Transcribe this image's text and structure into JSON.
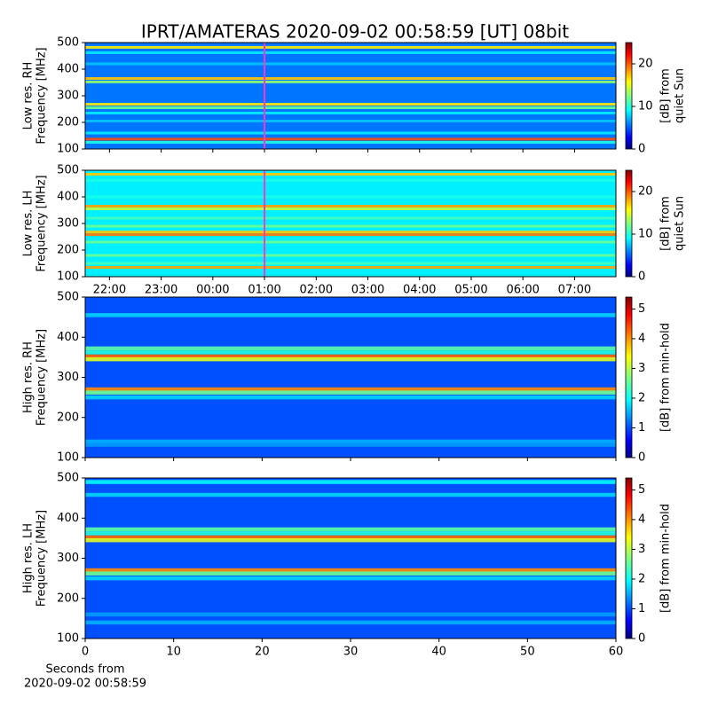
{
  "title": "IPRT/AMATERAS 2020-09-02 00:58:59 [UT]   08bit",
  "chart_data": [
    {
      "type": "spectrogram",
      "ylabel": [
        "Low res. RH",
        "Frequency [MHz]"
      ],
      "colormap": "jet",
      "ylim": [
        100,
        500
      ],
      "yticks": [
        100,
        200,
        300,
        400,
        500
      ],
      "clim": [
        0,
        25
      ],
      "cticks": [
        0,
        10,
        20
      ],
      "clabel": [
        "[dB] from",
        "quiet Sun"
      ],
      "background": 6,
      "marker_x": 25,
      "marker_color": "#ff33cc",
      "bands": [
        {
          "freq": 482,
          "db": 16
        },
        {
          "freq": 462,
          "db": 9
        },
        {
          "freq": 420,
          "db": 8
        },
        {
          "freq": 365,
          "db": 17
        },
        {
          "freq": 352,
          "db": 13
        },
        {
          "freq": 268,
          "db": 16
        },
        {
          "freq": 255,
          "db": 12
        },
        {
          "freq": 235,
          "db": 9
        },
        {
          "freq": 205,
          "db": 8
        },
        {
          "freq": 160,
          "db": 9
        },
        {
          "freq": 137,
          "db": 20
        },
        {
          "freq": 125,
          "db": 10
        }
      ]
    },
    {
      "type": "spectrogram",
      "ylabel": [
        "Low res. LH",
        "Frequency [MHz]"
      ],
      "colormap": "jet",
      "ylim": [
        100,
        500
      ],
      "yticks": [
        100,
        200,
        300,
        400,
        500
      ],
      "xlim": [
        21.53,
        31.8
      ],
      "xticks": [
        {
          "value": 22,
          "label": "22:00"
        },
        {
          "value": 23,
          "label": "23:00"
        },
        {
          "value": 24,
          "label": "00:00"
        },
        {
          "value": 25,
          "label": "01:00"
        },
        {
          "value": 26,
          "label": "02:00"
        },
        {
          "value": 27,
          "label": "03:00"
        },
        {
          "value": 28,
          "label": "04:00"
        },
        {
          "value": 29,
          "label": "05:00"
        },
        {
          "value": 30,
          "label": "06:00"
        },
        {
          "value": 31,
          "label": "07:00"
        }
      ],
      "clim": [
        0,
        25
      ],
      "cticks": [
        0,
        10,
        20
      ],
      "clabel": [
        "[dB] from",
        "quiet Sun"
      ],
      "background": 9,
      "marker_x": 25,
      "marker_color": "#ff33cc",
      "bands": [
        {
          "freq": 485,
          "db": 17
        },
        {
          "freq": 462,
          "db": 10
        },
        {
          "freq": 400,
          "db": 10
        },
        {
          "freq": 365,
          "db": 18
        },
        {
          "freq": 355,
          "db": 14
        },
        {
          "freq": 320,
          "db": 11
        },
        {
          "freq": 290,
          "db": 12
        },
        {
          "freq": 268,
          "db": 17
        },
        {
          "freq": 258,
          "db": 19
        },
        {
          "freq": 230,
          "db": 12
        },
        {
          "freq": 180,
          "db": 12
        },
        {
          "freq": 150,
          "db": 11
        },
        {
          "freq": 135,
          "db": 18
        },
        {
          "freq": 125,
          "db": 9
        }
      ]
    },
    {
      "type": "spectrogram",
      "ylabel": [
        "High res. RH",
        "Frequency [MHz]"
      ],
      "colormap": "jet",
      "ylim": [
        100,
        500
      ],
      "yticks": [
        100,
        200,
        300,
        400,
        500
      ],
      "clim": [
        0,
        5.4
      ],
      "cticks": [
        0,
        1,
        2,
        3,
        4,
        5
      ],
      "clabel": [
        "[dB] from min-hold"
      ],
      "background": 1.1,
      "bands": [
        {
          "freq": 455,
          "db": 1.8
        },
        {
          "freq": 372,
          "db": 2.5
        },
        {
          "freq": 362,
          "db": 2.2
        },
        {
          "freq": 352,
          "db": 4.2
        },
        {
          "freq": 345,
          "db": 3.2
        },
        {
          "freq": 270,
          "db": 4.0
        },
        {
          "freq": 262,
          "db": 2.6
        },
        {
          "freq": 250,
          "db": 1.8
        },
        {
          "freq": 140,
          "db": 1.6
        },
        {
          "freq": 132,
          "db": 1.5
        }
      ]
    },
    {
      "type": "spectrogram",
      "ylabel": [
        "High res. LH",
        "Frequency [MHz]"
      ],
      "colormap": "jet",
      "ylim": [
        100,
        500
      ],
      "yticks": [
        100,
        200,
        300,
        400,
        500
      ],
      "xlim": [
        0,
        60
      ],
      "xticks": [
        0,
        10,
        20,
        30,
        40,
        50,
        60
      ],
      "xlabel": [
        "Seconds from",
        "2020-09-02 00:58:59"
      ],
      "clim": [
        0,
        5.4
      ],
      "cticks": [
        0,
        1,
        2,
        3,
        4,
        5
      ],
      "clabel": [
        "[dB] from min-hold"
      ],
      "background": 1.1,
      "bands": [
        {
          "freq": 490,
          "db": 2.0
        },
        {
          "freq": 458,
          "db": 1.8
        },
        {
          "freq": 372,
          "db": 2.5
        },
        {
          "freq": 362,
          "db": 2.2
        },
        {
          "freq": 352,
          "db": 4.2
        },
        {
          "freq": 345,
          "db": 3.2
        },
        {
          "freq": 270,
          "db": 4.0
        },
        {
          "freq": 262,
          "db": 2.6
        },
        {
          "freq": 250,
          "db": 1.8
        },
        {
          "freq": 160,
          "db": 1.5
        },
        {
          "freq": 140,
          "db": 1.6
        }
      ]
    }
  ]
}
